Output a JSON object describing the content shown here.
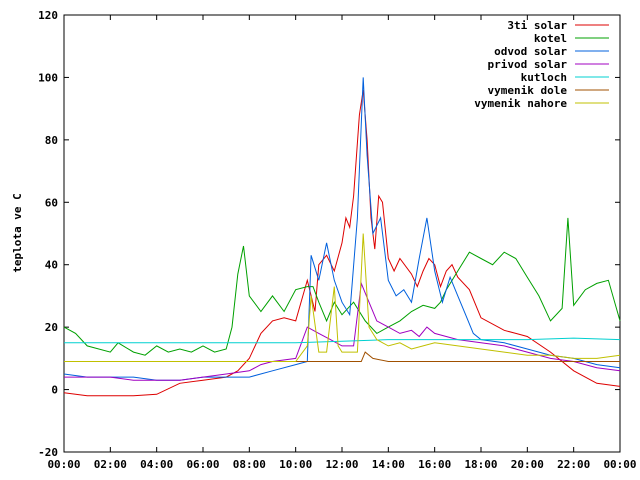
{
  "chart_data": {
    "type": "line",
    "title": "",
    "xlabel": "",
    "ylabel": "teplota ve C",
    "xlim": [
      "00:00",
      "24:00"
    ],
    "ylim": [
      -20,
      120
    ],
    "x_ticks": [
      "00:00",
      "02:00",
      "04:00",
      "06:00",
      "08:00",
      "10:00",
      "12:00",
      "14:00",
      "16:00",
      "18:00",
      "20:00",
      "22:00",
      "00:00"
    ],
    "y_ticks": [
      -20,
      0,
      20,
      40,
      60,
      80,
      100,
      120
    ],
    "grid": false,
    "legend_position": "top-right",
    "series": [
      {
        "name": "3ti solar",
        "color": "#dd0000",
        "points": [
          [
            "00:00",
            -1
          ],
          [
            "01:00",
            -2
          ],
          [
            "02:00",
            -2
          ],
          [
            "03:00",
            -2
          ],
          [
            "04:00",
            -1.5
          ],
          [
            "05:00",
            2
          ],
          [
            "06:00",
            3
          ],
          [
            "07:00",
            4
          ],
          [
            "07:30",
            6
          ],
          [
            "08:00",
            10
          ],
          [
            "08:30",
            18
          ],
          [
            "09:00",
            22
          ],
          [
            "09:30",
            23
          ],
          [
            "10:00",
            22
          ],
          [
            "10:30",
            35
          ],
          [
            "10:50",
            25
          ],
          [
            "11:00",
            40
          ],
          [
            "11:20",
            43
          ],
          [
            "11:40",
            38
          ],
          [
            "12:00",
            47
          ],
          [
            "12:10",
            55
          ],
          [
            "12:20",
            52
          ],
          [
            "12:30",
            62
          ],
          [
            "12:45",
            88
          ],
          [
            "12:55",
            96
          ],
          [
            "13:05",
            80
          ],
          [
            "13:15",
            55
          ],
          [
            "13:25",
            45
          ],
          [
            "13:35",
            62
          ],
          [
            "13:45",
            60
          ],
          [
            "14:00",
            42
          ],
          [
            "14:15",
            38
          ],
          [
            "14:30",
            42
          ],
          [
            "15:00",
            37
          ],
          [
            "15:15",
            33
          ],
          [
            "15:30",
            38
          ],
          [
            "15:45",
            42
          ],
          [
            "16:00",
            40
          ],
          [
            "16:15",
            33
          ],
          [
            "16:30",
            38
          ],
          [
            "16:45",
            40
          ],
          [
            "17:00",
            36
          ],
          [
            "17:30",
            32
          ],
          [
            "18:00",
            23
          ],
          [
            "19:00",
            19
          ],
          [
            "19:30",
            18
          ],
          [
            "20:00",
            17
          ],
          [
            "21:00",
            12
          ],
          [
            "22:00",
            6
          ],
          [
            "23:00",
            2
          ],
          [
            "24:00",
            1
          ]
        ]
      },
      {
        "name": "kotel",
        "color": "#00a000",
        "points": [
          [
            "00:00",
            20
          ],
          [
            "00:30",
            18
          ],
          [
            "01:00",
            14
          ],
          [
            "02:00",
            12
          ],
          [
            "02:20",
            15
          ],
          [
            "03:00",
            12
          ],
          [
            "03:30",
            11
          ],
          [
            "04:00",
            14
          ],
          [
            "04:30",
            12
          ],
          [
            "05:00",
            13
          ],
          [
            "05:30",
            12
          ],
          [
            "06:00",
            14
          ],
          [
            "06:30",
            12
          ],
          [
            "07:00",
            13
          ],
          [
            "07:15",
            20
          ],
          [
            "07:30",
            37
          ],
          [
            "07:45",
            46
          ],
          [
            "08:00",
            30
          ],
          [
            "08:30",
            25
          ],
          [
            "09:00",
            30
          ],
          [
            "09:30",
            25
          ],
          [
            "10:00",
            32
          ],
          [
            "10:30",
            33
          ],
          [
            "10:45",
            33
          ],
          [
            "11:00",
            28
          ],
          [
            "11:20",
            22
          ],
          [
            "11:40",
            28
          ],
          [
            "12:00",
            24
          ],
          [
            "12:30",
            28
          ],
          [
            "13:00",
            22
          ],
          [
            "13:30",
            18
          ],
          [
            "14:00",
            20
          ],
          [
            "14:30",
            22
          ],
          [
            "15:00",
            25
          ],
          [
            "15:30",
            27
          ],
          [
            "16:00",
            26
          ],
          [
            "16:15",
            28
          ],
          [
            "16:30",
            32
          ],
          [
            "17:00",
            38
          ],
          [
            "17:30",
            44
          ],
          [
            "18:00",
            42
          ],
          [
            "18:30",
            40
          ],
          [
            "19:00",
            44
          ],
          [
            "19:30",
            42
          ],
          [
            "20:00",
            36
          ],
          [
            "20:30",
            30
          ],
          [
            "21:00",
            22
          ],
          [
            "21:30",
            26
          ],
          [
            "21:45",
            55
          ],
          [
            "22:00",
            27
          ],
          [
            "22:30",
            32
          ],
          [
            "23:00",
            34
          ],
          [
            "23:30",
            35
          ],
          [
            "24:00",
            22
          ]
        ]
      },
      {
        "name": "odvod solar",
        "color": "#0060dd",
        "points": [
          [
            "00:00",
            5
          ],
          [
            "01:00",
            4
          ],
          [
            "02:00",
            4
          ],
          [
            "03:00",
            4
          ],
          [
            "04:00",
            3
          ],
          [
            "05:00",
            3
          ],
          [
            "06:00",
            4
          ],
          [
            "07:00",
            4
          ],
          [
            "08:00",
            4
          ],
          [
            "09:00",
            6
          ],
          [
            "10:00",
            8
          ],
          [
            "10:30",
            9
          ],
          [
            "10:40",
            43
          ],
          [
            "11:00",
            35
          ],
          [
            "11:20",
            47
          ],
          [
            "11:40",
            35
          ],
          [
            "12:00",
            28
          ],
          [
            "12:20",
            24
          ],
          [
            "12:40",
            55
          ],
          [
            "12:55",
            100
          ],
          [
            "13:05",
            75
          ],
          [
            "13:20",
            50
          ],
          [
            "13:40",
            55
          ],
          [
            "14:00",
            35
          ],
          [
            "14:20",
            30
          ],
          [
            "14:40",
            32
          ],
          [
            "15:00",
            28
          ],
          [
            "15:20",
            42
          ],
          [
            "15:40",
            55
          ],
          [
            "16:00",
            38
          ],
          [
            "16:20",
            28
          ],
          [
            "16:40",
            36
          ],
          [
            "17:00",
            30
          ],
          [
            "17:20",
            24
          ],
          [
            "17:40",
            18
          ],
          [
            "18:00",
            16
          ],
          [
            "19:00",
            15
          ],
          [
            "20:00",
            13
          ],
          [
            "21:00",
            11
          ],
          [
            "22:00",
            10
          ],
          [
            "23:00",
            8
          ],
          [
            "24:00",
            7
          ]
        ]
      },
      {
        "name": "privod solar",
        "color": "#a000c0",
        "points": [
          [
            "00:00",
            4
          ],
          [
            "01:00",
            4
          ],
          [
            "02:00",
            4
          ],
          [
            "03:00",
            3
          ],
          [
            "04:00",
            3
          ],
          [
            "05:00",
            3
          ],
          [
            "06:00",
            4
          ],
          [
            "07:00",
            5
          ],
          [
            "08:00",
            6
          ],
          [
            "08:30",
            8
          ],
          [
            "09:00",
            9
          ],
          [
            "10:00",
            10
          ],
          [
            "10:30",
            20
          ],
          [
            "11:00",
            18
          ],
          [
            "11:30",
            16
          ],
          [
            "12:00",
            14
          ],
          [
            "12:30",
            14
          ],
          [
            "12:50",
            34
          ],
          [
            "13:10",
            28
          ],
          [
            "13:30",
            22
          ],
          [
            "14:00",
            20
          ],
          [
            "14:30",
            18
          ],
          [
            "15:00",
            19
          ],
          [
            "15:20",
            17
          ],
          [
            "15:40",
            20
          ],
          [
            "16:00",
            18
          ],
          [
            "17:00",
            16
          ],
          [
            "18:00",
            15
          ],
          [
            "19:00",
            14
          ],
          [
            "20:00",
            12
          ],
          [
            "21:00",
            10
          ],
          [
            "22:00",
            9
          ],
          [
            "23:00",
            7
          ],
          [
            "24:00",
            6
          ]
        ]
      },
      {
        "name": "kutloch",
        "color": "#00d0d0",
        "points": [
          [
            "00:00",
            15
          ],
          [
            "02:00",
            15
          ],
          [
            "04:00",
            15
          ],
          [
            "06:00",
            15
          ],
          [
            "08:00",
            15
          ],
          [
            "10:00",
            15
          ],
          [
            "12:00",
            15.5
          ],
          [
            "14:00",
            16
          ],
          [
            "16:00",
            16
          ],
          [
            "18:00",
            16
          ],
          [
            "20:00",
            16
          ],
          [
            "22:00",
            16.5
          ],
          [
            "24:00",
            16
          ]
        ]
      },
      {
        "name": "vymenik dole",
        "color": "#a05000",
        "points": [
          [
            "00:00",
            9
          ],
          [
            "02:00",
            9
          ],
          [
            "04:00",
            9
          ],
          [
            "06:00",
            9
          ],
          [
            "08:00",
            9
          ],
          [
            "10:00",
            9
          ],
          [
            "11:00",
            9
          ],
          [
            "12:00",
            9
          ],
          [
            "12:50",
            9
          ],
          [
            "13:00",
            12
          ],
          [
            "13:20",
            10
          ],
          [
            "14:00",
            9
          ],
          [
            "16:00",
            9
          ],
          [
            "18:00",
            9
          ],
          [
            "20:00",
            9
          ],
          [
            "22:00",
            9
          ],
          [
            "24:00",
            9
          ]
        ]
      },
      {
        "name": "vymenik nahore",
        "color": "#c0c000",
        "points": [
          [
            "00:00",
            9
          ],
          [
            "02:00",
            9
          ],
          [
            "04:00",
            9
          ],
          [
            "06:00",
            9
          ],
          [
            "08:00",
            9
          ],
          [
            "09:00",
            9
          ],
          [
            "10:00",
            9
          ],
          [
            "10:30",
            14
          ],
          [
            "10:40",
            30
          ],
          [
            "11:00",
            12
          ],
          [
            "11:20",
            12
          ],
          [
            "11:40",
            33
          ],
          [
            "11:50",
            14
          ],
          [
            "12:00",
            12
          ],
          [
            "12:40",
            12
          ],
          [
            "12:55",
            50
          ],
          [
            "13:10",
            20
          ],
          [
            "13:30",
            16
          ],
          [
            "14:00",
            14
          ],
          [
            "14:30",
            15
          ],
          [
            "15:00",
            13
          ],
          [
            "15:30",
            14
          ],
          [
            "16:00",
            15
          ],
          [
            "17:00",
            14
          ],
          [
            "18:00",
            13
          ],
          [
            "19:00",
            12
          ],
          [
            "20:00",
            11
          ],
          [
            "21:00",
            11
          ],
          [
            "22:00",
            10
          ],
          [
            "23:00",
            10
          ],
          [
            "24:00",
            11
          ]
        ]
      }
    ]
  }
}
